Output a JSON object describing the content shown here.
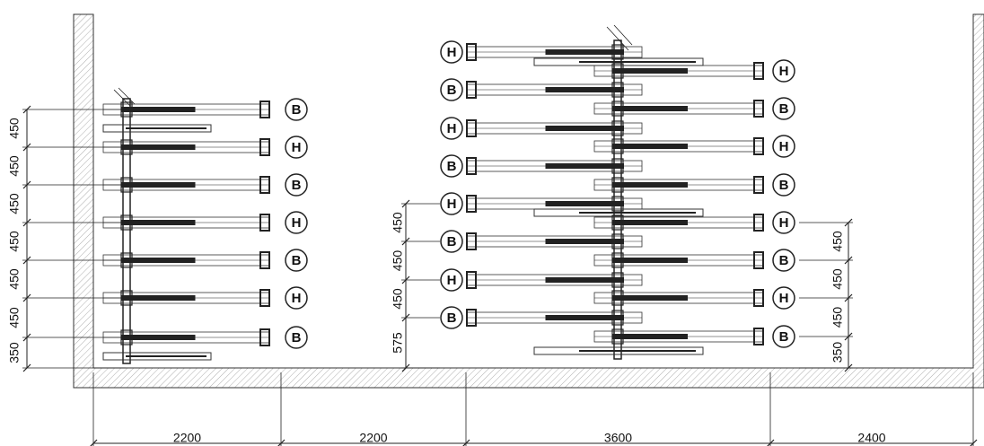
{
  "left_rack": {
    "labels": [
      "B",
      "H",
      "B",
      "H",
      "B",
      "H",
      "B"
    ],
    "dims": [
      "450",
      "450",
      "450",
      "450",
      "450",
      "450",
      "350"
    ]
  },
  "middle_rack": {
    "left_labels": [
      "H",
      "B",
      "H",
      "B",
      "H",
      "B",
      "H",
      "B"
    ],
    "right_labels": [
      "H",
      "B",
      "H",
      "B",
      "H",
      "B",
      "H",
      "B"
    ],
    "dims": [
      "450",
      "450",
      "450",
      "575"
    ]
  },
  "right_dims": [
    "450",
    "450",
    "450",
    "350"
  ],
  "bottom_dims": [
    "2200",
    "2200",
    "3600",
    "2400"
  ]
}
